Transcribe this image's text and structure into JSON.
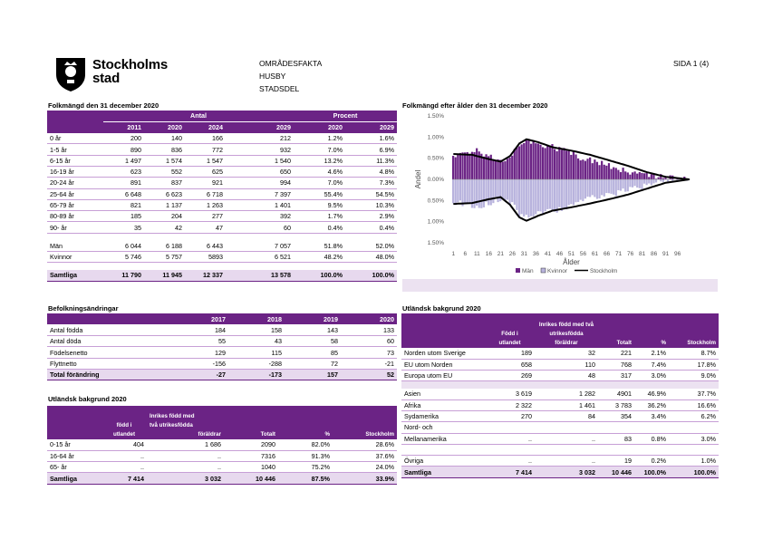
{
  "header": {
    "logo_text_line1": "Stockholms",
    "logo_text_line2": "stad",
    "area_lines": [
      "OMRÅDESFAKTA",
      "HUSBY",
      "STADSDEL"
    ],
    "page_label": "SIDA 1 (4)"
  },
  "pop": {
    "title": "Folkmängd den 31 december 2020",
    "group_antal": "Antal",
    "group_procent": "Procent",
    "years": [
      "2011",
      "2020",
      "2024",
      "2029"
    ],
    "pct_years": [
      "2020",
      "2029"
    ],
    "rows": [
      [
        "0 år",
        "200",
        "140",
        "166",
        "212",
        "1.2%",
        "1.6%"
      ],
      [
        "1-5 år",
        "890",
        "836",
        "772",
        "932",
        "7.0%",
        "6.9%"
      ],
      [
        "6-15 år",
        "1 497",
        "1 574",
        "1 547",
        "1 540",
        "13.2%",
        "11.3%"
      ],
      [
        "16-19 år",
        "623",
        "552",
        "625",
        "650",
        "4.6%",
        "4.8%"
      ],
      [
        "20-24 år",
        "891",
        "837",
        "921",
        "994",
        "7.0%",
        "7.3%"
      ],
      [
        "25-64 år",
        "6 648",
        "6 623",
        "6 718",
        "7 397",
        "55.4%",
        "54.5%"
      ],
      [
        "65-79 år",
        "821",
        "1 137",
        "1 263",
        "1 401",
        "9.5%",
        "10.3%"
      ],
      [
        "80-89 år",
        "185",
        "204",
        "277",
        "392",
        "1.7%",
        "2.9%"
      ],
      [
        "90- år",
        "35",
        "42",
        "47",
        "60",
        "0.4%",
        "0.4%"
      ]
    ],
    "gender_rows": [
      [
        "Män",
        "6 044",
        "6 188",
        "6 443",
        "7 057",
        "51.8%",
        "52.0%"
      ],
      [
        "Kvinnor",
        "5 746",
        "5 757",
        "5893",
        "6 521",
        "48.2%",
        "48.0%"
      ]
    ],
    "total_row": [
      "Samtliga",
      "11 790",
      "11 945",
      "12 337",
      "13 578",
      "100.0%",
      "100.0%"
    ]
  },
  "chart_data": {
    "type": "bar",
    "title": "Folkmängd efter ålder den 31 december 2020",
    "xlabel": "Ålder",
    "ylabel": "Andel",
    "x_ticks": [
      "1",
      "6",
      "11",
      "16",
      "21",
      "26",
      "31",
      "36",
      "41",
      "46",
      "51",
      "56",
      "61",
      "66",
      "71",
      "76",
      "81",
      "86",
      "91",
      "96"
    ],
    "y_ticks": [
      "1.50%",
      "1.00%",
      "0.50%",
      "0.00%",
      "0.50%",
      "1.00%",
      "1.50%"
    ],
    "ylim": [
      -1.5,
      1.5
    ],
    "legend": [
      "Män",
      "Kvinnor",
      "Stockholm"
    ],
    "colors": {
      "men": "#6b2385",
      "women": "#b8b3dd",
      "stockholm": "#000000"
    },
    "men_anchors": [
      [
        0,
        0.55
      ],
      [
        5,
        0.62
      ],
      [
        10,
        0.66
      ],
      [
        15,
        0.58
      ],
      [
        20,
        0.45
      ],
      [
        24,
        0.55
      ],
      [
        28,
        0.82
      ],
      [
        32,
        0.9
      ],
      [
        36,
        0.85
      ],
      [
        40,
        0.8
      ],
      [
        45,
        0.72
      ],
      [
        50,
        0.64
      ],
      [
        55,
        0.5
      ],
      [
        60,
        0.42
      ],
      [
        65,
        0.35
      ],
      [
        70,
        0.26
      ],
      [
        75,
        0.19
      ],
      [
        80,
        0.12
      ],
      [
        85,
        0.07
      ],
      [
        90,
        0.03
      ],
      [
        95,
        0.01
      ],
      [
        100,
        0.0
      ]
    ],
    "women_anchors": [
      [
        0,
        0.52
      ],
      [
        5,
        0.6
      ],
      [
        10,
        0.64
      ],
      [
        15,
        0.56
      ],
      [
        20,
        0.44
      ],
      [
        24,
        0.54
      ],
      [
        28,
        0.8
      ],
      [
        32,
        0.86
      ],
      [
        36,
        0.82
      ],
      [
        40,
        0.78
      ],
      [
        45,
        0.7
      ],
      [
        50,
        0.62
      ],
      [
        55,
        0.5
      ],
      [
        60,
        0.44
      ],
      [
        65,
        0.38
      ],
      [
        70,
        0.3
      ],
      [
        75,
        0.24
      ],
      [
        80,
        0.16
      ],
      [
        85,
        0.09
      ],
      [
        90,
        0.04
      ],
      [
        95,
        0.01
      ],
      [
        100,
        0.0
      ]
    ],
    "stockholm_men_anchors": [
      [
        0,
        0.6
      ],
      [
        8,
        0.58
      ],
      [
        15,
        0.48
      ],
      [
        20,
        0.42
      ],
      [
        24,
        0.55
      ],
      [
        28,
        0.85
      ],
      [
        31,
        0.95
      ],
      [
        36,
        0.88
      ],
      [
        42,
        0.76
      ],
      [
        50,
        0.68
      ],
      [
        58,
        0.58
      ],
      [
        66,
        0.45
      ],
      [
        74,
        0.32
      ],
      [
        82,
        0.17
      ],
      [
        90,
        0.06
      ],
      [
        100,
        0.0
      ]
    ],
    "stockholm_women_anchors": [
      [
        0,
        0.58
      ],
      [
        8,
        0.56
      ],
      [
        15,
        0.47
      ],
      [
        20,
        0.42
      ],
      [
        24,
        0.6
      ],
      [
        28,
        0.9
      ],
      [
        31,
        0.98
      ],
      [
        36,
        0.86
      ],
      [
        42,
        0.74
      ],
      [
        50,
        0.66
      ],
      [
        58,
        0.57
      ],
      [
        66,
        0.47
      ],
      [
        74,
        0.36
      ],
      [
        82,
        0.22
      ],
      [
        90,
        0.08
      ],
      [
        100,
        0.0
      ]
    ]
  },
  "changes": {
    "title": "Befolkningsändringar",
    "years": [
      "2017",
      "2018",
      "2019",
      "2020"
    ],
    "rows": [
      [
        "Antal födda",
        "184",
        "158",
        "143",
        "133"
      ],
      [
        "Antal döda",
        "55",
        "43",
        "58",
        "60"
      ],
      [
        "Födelsenetto",
        "129",
        "115",
        "85",
        "73"
      ],
      [
        "Flyttnetto",
        "-156",
        "-288",
        "72",
        "-21"
      ]
    ],
    "total_row": [
      "Total förändring",
      "-27",
      "-173",
      "157",
      "52"
    ]
  },
  "foreign_left": {
    "title": "Utländsk bakgrund 2020",
    "h_fodd": [
      "född i",
      "utlandet"
    ],
    "h_inrikes": [
      "Inrikes född med",
      "två utrikesfödda",
      "föräldrar"
    ],
    "h_totalt": "Totalt",
    "h_pct": "%",
    "h_sthlm": "Stockholm",
    "rows": [
      [
        "0-15 år",
        "404",
        "1 686",
        "2090",
        "82.0%",
        "28.6%"
      ],
      [
        "16-64 år",
        "..",
        "..",
        "7316",
        "91.3%",
        "37.6%"
      ],
      [
        "65- år",
        "..",
        "..",
        "1040",
        "75.2%",
        "24.0%"
      ]
    ],
    "total_row": [
      "Samtliga",
      "7 414",
      "3 032",
      "10 446",
      "87.5%",
      "33.9%"
    ]
  },
  "foreign_right": {
    "title": "Utländsk bakgrund 2020",
    "h_fodd": [
      "Född i",
      "utlandet"
    ],
    "h_inrikes": [
      "Inrikes född med två",
      "utrikesfödda",
      "föräldrar"
    ],
    "h_totalt": "Totalt",
    "h_pct": "%",
    "h_sthlm": "Stockholm",
    "rows_a": [
      [
        "Norden utom Sverige",
        "189",
        "32",
        "221",
        "2.1%",
        "8.7%"
      ],
      [
        "EU utom Norden",
        "658",
        "110",
        "768",
        "7.4%",
        "17.8%"
      ],
      [
        "Europa utom EU",
        "269",
        "48",
        "317",
        "3.0%",
        "9.0%"
      ]
    ],
    "rows_b": [
      [
        "Asien",
        "3 619",
        "1 282",
        "4901",
        "46.9%",
        "37.7%"
      ],
      [
        "Afrika",
        "2 322",
        "1 461",
        "3 783",
        "36.2%",
        "16.6%"
      ],
      [
        "Sydamerika",
        "270",
        "84",
        "354",
        "3.4%",
        "6.2%"
      ],
      [
        "Nord- och",
        "",
        "",
        "",
        "",
        ""
      ],
      [
        "Mellanamerika",
        "..",
        "..",
        "83",
        "0.8%",
        "3.0%"
      ],
      [
        "",
        "",
        "",
        "",
        "",
        ""
      ],
      [
        "Övriga",
        "..",
        "..",
        "19",
        "0.2%",
        "1.0%"
      ]
    ],
    "total_row": [
      "Samtliga",
      "7 414",
      "3 032",
      "10 446",
      "100.0%",
      "100.0%"
    ]
  }
}
